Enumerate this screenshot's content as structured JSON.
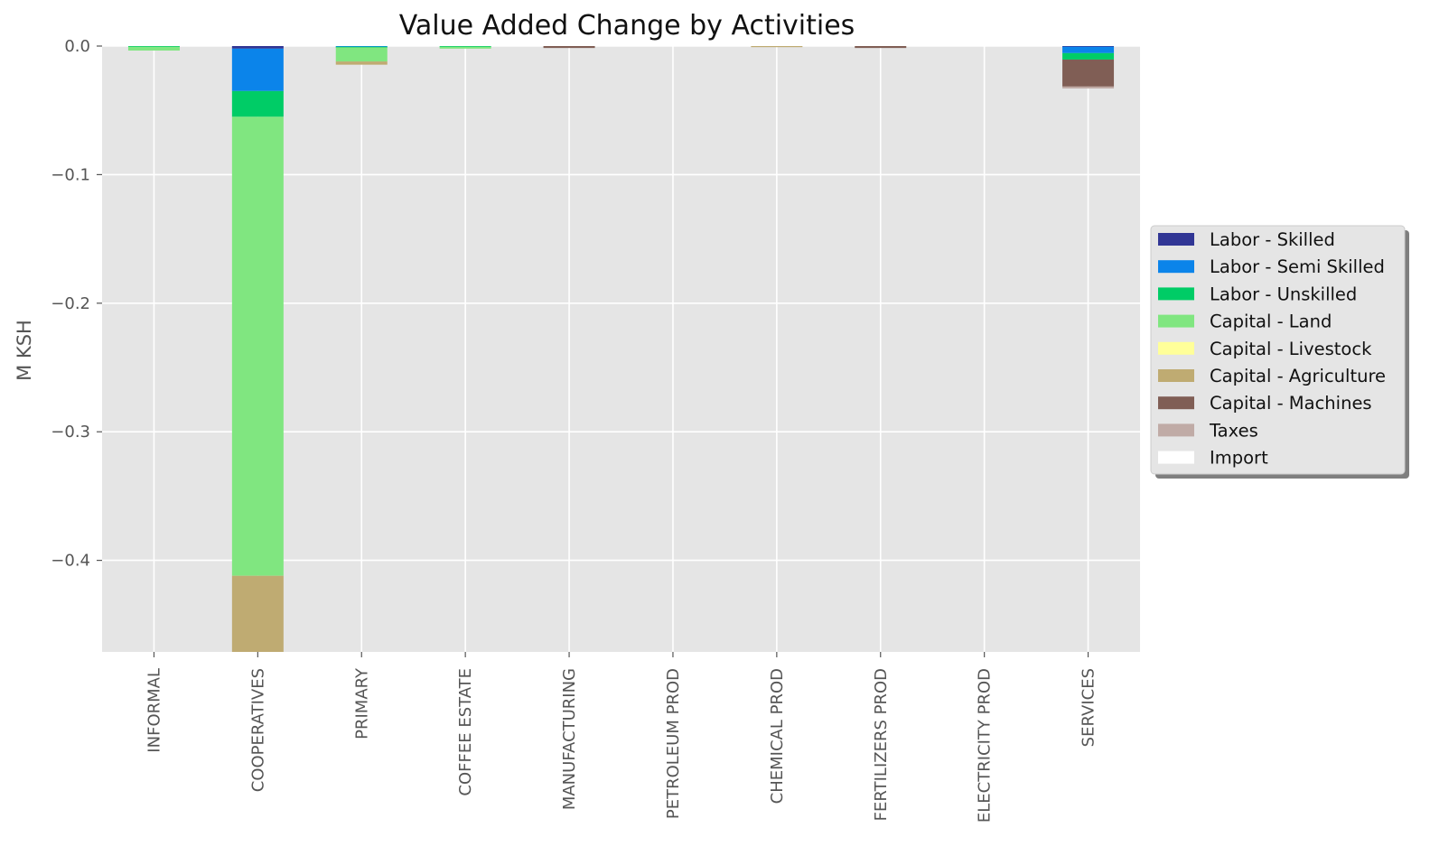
{
  "chart_data": {
    "type": "bar",
    "stacked": true,
    "title": "Value Added Change by Activities",
    "xlabel": "",
    "ylabel": "M KSH",
    "ylim": [
      -0.47,
      0.0
    ],
    "yticks": [
      0.0,
      -0.1,
      -0.2,
      -0.3,
      -0.4
    ],
    "ytick_labels": [
      "0.0",
      "−0.1",
      "−0.2",
      "−0.3",
      "−0.4"
    ],
    "grid": true,
    "legend_position": "center-right",
    "categories": [
      "INFORMAL",
      "COOPERATIVES",
      "PRIMARY",
      "COFFEE ESTATE",
      "MANUFACTURING",
      "PETROLEUM PROD",
      "CHEMICAL PROD",
      "FERTILIZERS PROD",
      "ELECTRICITY PROD",
      "SERVICES"
    ],
    "series": [
      {
        "name": "Labor - Skilled",
        "color": "#313695",
        "values": [
          0,
          -0.002,
          0,
          0,
          0,
          0,
          0,
          0,
          0,
          -0.0005
        ]
      },
      {
        "name": "Labor - Semi Skilled",
        "color": "#0b84ea",
        "values": [
          0,
          -0.033,
          -0.0005,
          0,
          0,
          0,
          0,
          0,
          0,
          -0.005
        ]
      },
      {
        "name": "Labor - Unskilled",
        "color": "#00cc66",
        "values": [
          -0.0005,
          -0.02,
          -0.0005,
          -0.0005,
          0,
          0,
          0,
          0,
          0,
          -0.005
        ]
      },
      {
        "name": "Capital - Land",
        "color": "#80e680",
        "values": [
          -0.003,
          -0.357,
          -0.011,
          -0.0015,
          0,
          0,
          0,
          0,
          0,
          0
        ]
      },
      {
        "name": "Capital - Livestock",
        "color": "#ffff99",
        "values": [
          0,
          0,
          0,
          0,
          0,
          0,
          0,
          0,
          0,
          0
        ]
      },
      {
        "name": "Capital - Agriculture",
        "color": "#bfab72",
        "values": [
          0,
          -0.07,
          -0.0025,
          0,
          0,
          0,
          -0.0005,
          0,
          0,
          0
        ]
      },
      {
        "name": "Capital - Machines",
        "color": "#805e55",
        "values": [
          0,
          0,
          0,
          0,
          -0.0015,
          0,
          0,
          -0.0015,
          0,
          -0.021
        ]
      },
      {
        "name": "Taxes",
        "color": "#c0aba6",
        "values": [
          0,
          0,
          0,
          0,
          0,
          0,
          0,
          0,
          0,
          -0.0015
        ]
      },
      {
        "name": "Import",
        "color": "#ffffff",
        "values": [
          0,
          0,
          0,
          0,
          0,
          0,
          0,
          0,
          0,
          0
        ]
      }
    ],
    "colors": {
      "plot_bg": "#e5e5e5",
      "grid": "#ffffff",
      "legend_bg": "#e5e5e5",
      "legend_border": "#cccccc",
      "legend_shadow": "#7f7f7f"
    }
  }
}
